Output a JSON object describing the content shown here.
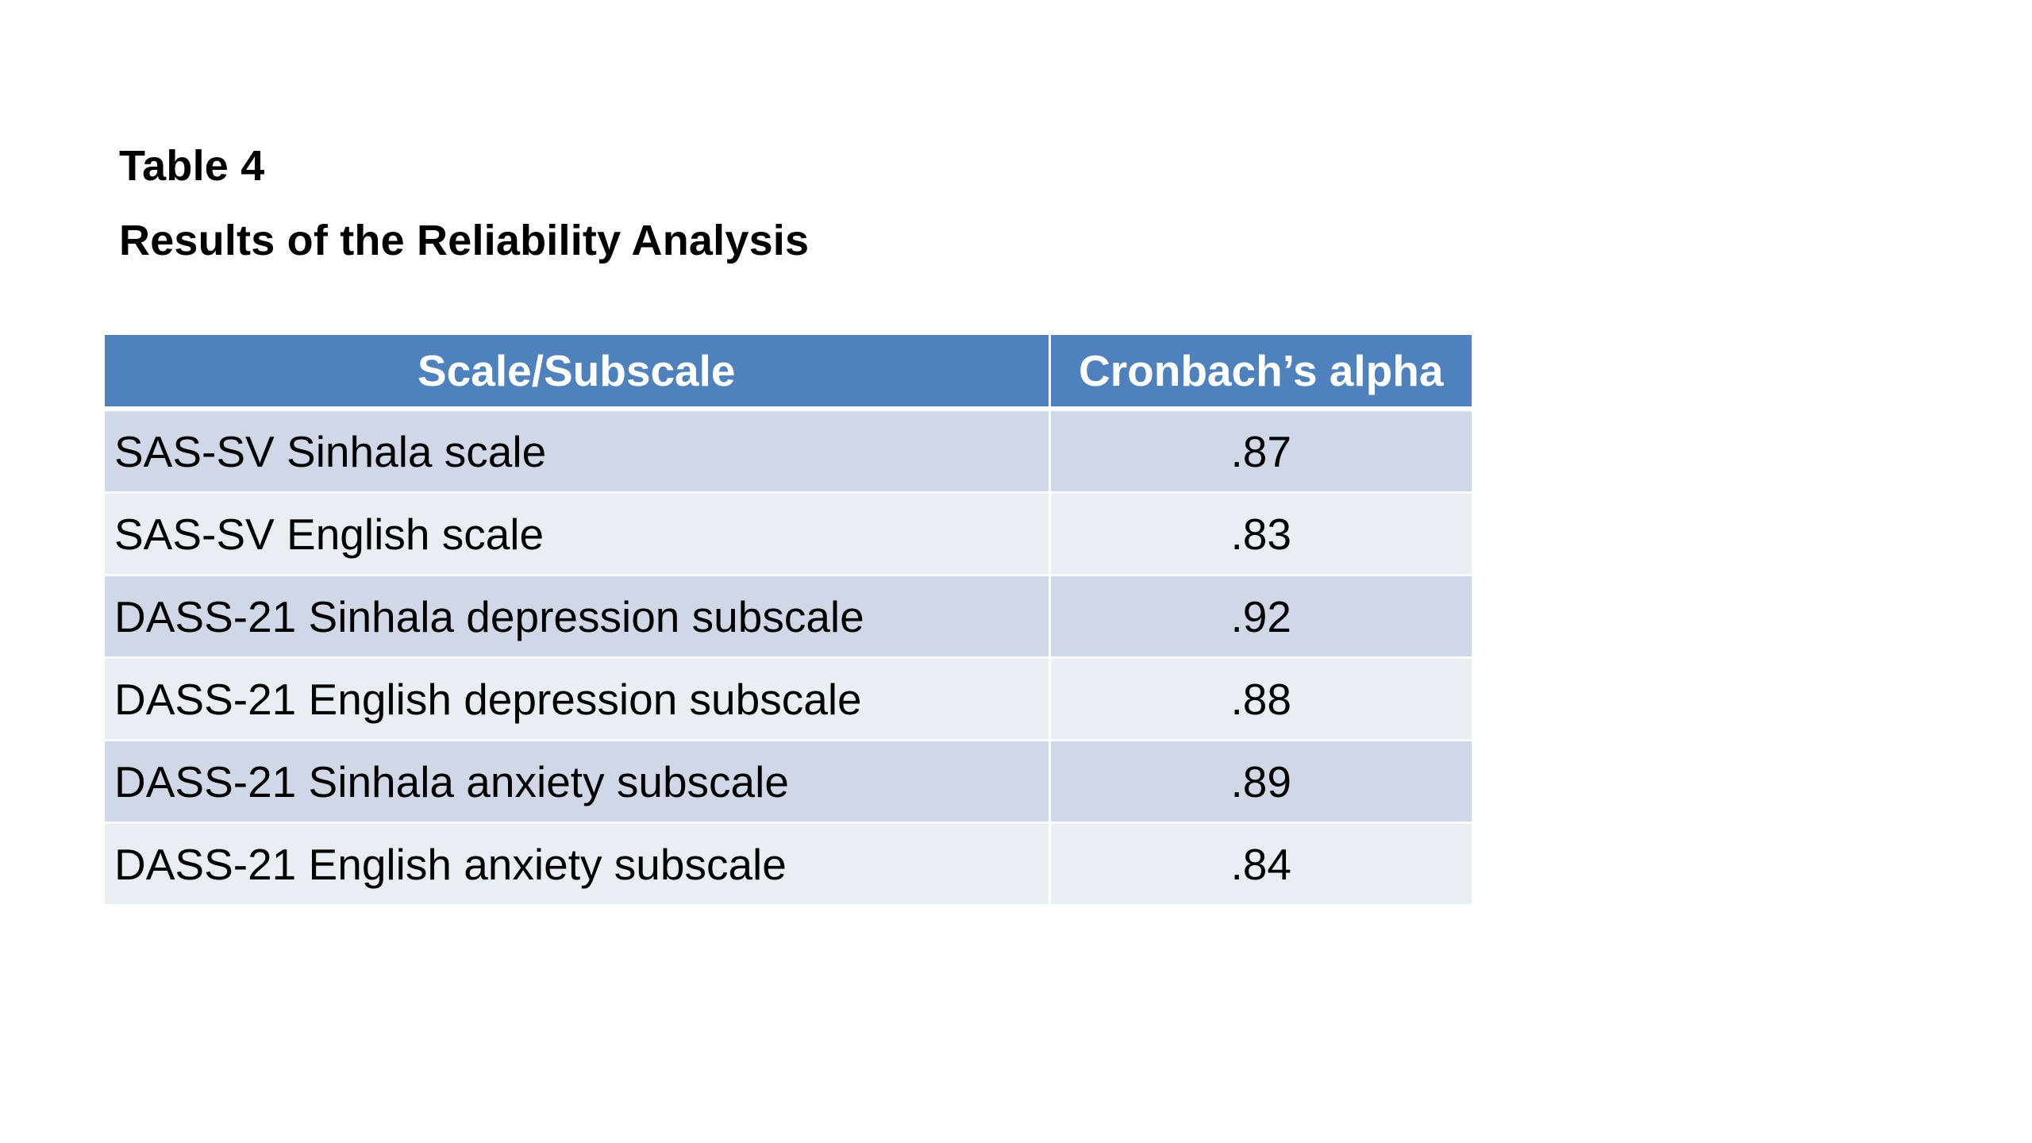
{
  "table": {
    "number": "Table 4",
    "caption": "Results of the Reliability Analysis",
    "headers": [
      "Scale/Subscale",
      "Cronbach’s alpha"
    ],
    "rows": [
      {
        "scale": "SAS-SV Sinhala scale",
        "alpha": ".87"
      },
      {
        "scale": "SAS-SV English scale",
        "alpha": ".83"
      },
      {
        "scale": "DASS-21 Sinhala depression subscale",
        "alpha": ".92"
      },
      {
        "scale": "DASS-21 English depression subscale",
        "alpha": ".88"
      },
      {
        "scale": "DASS-21 Sinhala anxiety subscale",
        "alpha": ".89"
      },
      {
        "scale": "DASS-21 English anxiety subscale",
        "alpha": ".84"
      }
    ]
  },
  "colors": {
    "header_background": "#4f81bd",
    "header_text": "#ffffff",
    "row_band_dark": "#d0d8e8",
    "row_band_light": "#e9edf4"
  }
}
